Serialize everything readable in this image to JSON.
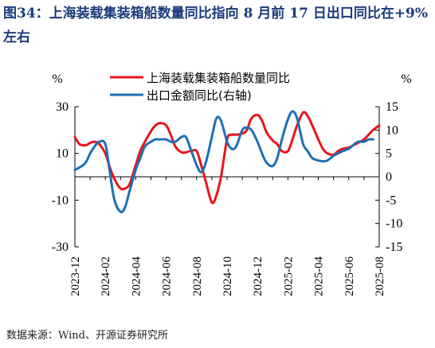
{
  "title": "图34：上海装载集装箱船数量同比指向 8 月前 17 日出口同比在+9%左右",
  "source": "数据来源：Wind、开源证券研究所",
  "colors": {
    "title": "#1a3a7a",
    "series_red": "#e8141b",
    "series_blue": "#1f6fb5",
    "axis": "#000000"
  },
  "chart_data": {
    "type": "line",
    "x": [
      "2023-12",
      "2024-01",
      "2024-02",
      "2024-03",
      "2024-04",
      "2024-05",
      "2024-06",
      "2024-07",
      "2024-08",
      "2024-09",
      "2024-10",
      "2024-11",
      "2024-12",
      "2025-01",
      "2025-02",
      "2025-03",
      "2025-04",
      "2025-05",
      "2025-06",
      "2025-07",
      "2025-08"
    ],
    "x_tick_labels": [
      "2023-12",
      "2024-02",
      "2024-04",
      "2024-06",
      "2024-08",
      "2024-10",
      "2024-12",
      "2025-02",
      "2025-04",
      "2025-06",
      "2025-08"
    ],
    "left_axis": {
      "unit": "%",
      "ylim": [
        -30,
        30
      ],
      "ticks": [
        "30",
        "10",
        "-10",
        "-30"
      ]
    },
    "right_axis": {
      "unit": "%",
      "ylim": [
        -15,
        15
      ],
      "ticks": [
        "15",
        "10",
        "5",
        "0",
        "-5",
        "-10",
        "-15"
      ]
    },
    "series": [
      {
        "name": "上海装载集装箱船数量同比",
        "axis": "left",
        "color": "#e8141b",
        "x": [
          0,
          0.3,
          0.7,
          1,
          1.3,
          1.6,
          2,
          2.3,
          2.6,
          3,
          3.3,
          3.6,
          4,
          4.3,
          4.6,
          5,
          5.3,
          5.6,
          6,
          6.3,
          6.6,
          7,
          7.3,
          7.6,
          8,
          8.3,
          8.6,
          9,
          9.3,
          9.6,
          10,
          10.3,
          10.6,
          11,
          11.3,
          11.6,
          12,
          12.3,
          12.6,
          13,
          13.3,
          13.6,
          14,
          14.3,
          14.6,
          15,
          15.3,
          15.6,
          16,
          16.3,
          16.6,
          17,
          17.3,
          17.6,
          18,
          18.3,
          18.6,
          19,
          19.3,
          19.6,
          20
        ],
        "y": [
          17,
          14,
          13.5,
          14.5,
          15,
          14,
          10,
          4,
          -1,
          -5,
          -5,
          -3,
          5,
          11,
          15,
          19.5,
          22,
          23,
          22,
          18,
          13,
          10.5,
          10.5,
          11,
          11,
          5,
          -2,
          -11,
          -8,
          0,
          16,
          18,
          18,
          18.5,
          20,
          25,
          26.5,
          24,
          19,
          15.5,
          14,
          11,
          11,
          16,
          22,
          27.5,
          26,
          22,
          16,
          12,
          10,
          9.5,
          11,
          12,
          12.5,
          13.5,
          14.5,
          16,
          18,
          20,
          22
        ]
      },
      {
        "name": "出口金额同比(右轴)",
        "axis": "right",
        "color": "#1f6fb5",
        "x": [
          0,
          0.3,
          0.7,
          1,
          1.3,
          1.6,
          2,
          2.3,
          2.6,
          3,
          3.3,
          3.6,
          4,
          4.3,
          4.6,
          5,
          5.3,
          5.6,
          6,
          6.3,
          6.6,
          7,
          7.3,
          7.6,
          8,
          8.3,
          8.6,
          9,
          9.3,
          9.6,
          10,
          10.3,
          10.6,
          11,
          11.3,
          11.6,
          12,
          12.3,
          12.6,
          13,
          13.3,
          13.6,
          14,
          14.3,
          14.6,
          15,
          15.3,
          15.6,
          16,
          16.3,
          16.6,
          17,
          17.3,
          17.6,
          18,
          18.3,
          18.6,
          19,
          19.3,
          19.6
        ],
        "y": [
          1.5,
          2,
          3,
          5,
          6.5,
          7.5,
          7,
          1,
          -5,
          -7.5,
          -6.5,
          -3,
          1.5,
          4,
          6.5,
          7.5,
          8,
          8,
          8,
          7.5,
          7.5,
          8.5,
          8.5,
          6,
          2.5,
          1,
          3,
          8.5,
          12.5,
          12,
          7.5,
          6,
          6.5,
          10,
          10.5,
          10,
          7.5,
          5,
          3,
          2.3,
          4,
          8,
          12.3,
          14,
          12.5,
          7,
          5.5,
          4,
          3.5,
          3.3,
          3.5,
          4.5,
          5,
          5.5,
          6,
          6.8,
          7.5,
          7.5,
          8,
          8
        ]
      }
    ],
    "legend": {
      "position": "top-center",
      "entries": [
        "上海装载集装箱船数量同比",
        "出口金额同比(右轴)"
      ]
    },
    "grid": false
  }
}
